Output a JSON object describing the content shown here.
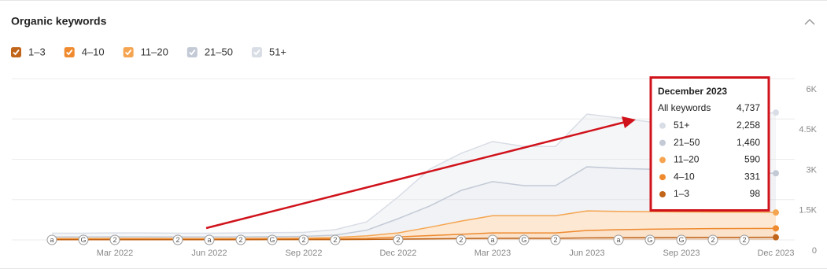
{
  "chart_data": {
    "type": "stacked-area",
    "title": "Organic keywords",
    "categories": [
      null,
      null,
      "Mar 2022",
      null,
      null,
      "Jun 2022",
      null,
      null,
      "Sep 2022",
      null,
      null,
      "Dec 2022",
      null,
      null,
      "Mar 2023",
      null,
      null,
      "Jun 2023",
      null,
      null,
      "Sep 2023",
      null,
      null,
      "Dec 2023"
    ],
    "series": [
      {
        "name": "1–3",
        "color": "#c0651a",
        "values": [
          8,
          8,
          8,
          8,
          8,
          8,
          9,
          10,
          10,
          12,
          18,
          30,
          40,
          50,
          60,
          60,
          60,
          75,
          80,
          85,
          88,
          92,
          95,
          98
        ]
      },
      {
        "name": "4–10",
        "color": "#ef8a2e",
        "values": [
          17,
          17,
          17,
          17,
          17,
          17,
          19,
          20,
          22,
          28,
          42,
          80,
          120,
          160,
          200,
          200,
          200,
          275,
          300,
          315,
          322,
          328,
          330,
          331
        ]
      },
      {
        "name": "11–20",
        "color": "#f5a551",
        "values": [
          25,
          25,
          30,
          30,
          25,
          25,
          27,
          30,
          33,
          50,
          90,
          150,
          310,
          490,
          640,
          640,
          640,
          730,
          680,
          650,
          630,
          610,
          605,
          590
        ]
      },
      {
        "name": "21–50",
        "color": "#c3cad6",
        "values": [
          60,
          60,
          60,
          60,
          60,
          60,
          60,
          60,
          65,
          90,
          210,
          530,
          790,
          1140,
          1270,
          1120,
          1120,
          1640,
          1600,
          1580,
          1520,
          1490,
          1470,
          1460
        ]
      },
      {
        "name": "51+",
        "color": "#d9dde5",
        "values": [
          140,
          140,
          145,
          145,
          140,
          140,
          145,
          150,
          150,
          200,
          310,
          810,
          1370,
          1380,
          1490,
          1460,
          1460,
          1960,
          1880,
          1760,
          1940,
          2080,
          2150,
          2258
        ]
      }
    ],
    "ylim": [
      0,
      6000
    ],
    "yticks": [
      0,
      {
        "value": 1500,
        "label": "1.5K"
      },
      {
        "value": 3000,
        "label": "3K"
      },
      {
        "value": 4500,
        "label": "4.5K"
      },
      {
        "value": 6000,
        "label": "6K"
      }
    ],
    "grid": true,
    "events": [
      {
        "at": 0,
        "label": "a"
      },
      {
        "at": 1,
        "label": "G"
      },
      {
        "at": 2,
        "label": "2"
      },
      {
        "at": 4,
        "label": "2"
      },
      {
        "at": 5,
        "label": "a"
      },
      {
        "at": 6,
        "label": "2"
      },
      {
        "at": 7,
        "label": "G"
      },
      {
        "at": 8,
        "label": "2"
      },
      {
        "at": 9,
        "label": "2"
      },
      {
        "at": 11,
        "label": "2"
      },
      {
        "at": 13,
        "label": "2"
      },
      {
        "at": 14,
        "label": "a"
      },
      {
        "at": 15,
        "label": "G"
      },
      {
        "at": 16,
        "label": "2"
      },
      {
        "at": 18,
        "label": "a"
      },
      {
        "at": 19,
        "label": "G"
      },
      {
        "at": 20,
        "label": "G"
      },
      {
        "at": 21,
        "label": "2"
      },
      {
        "at": 22,
        "label": "2"
      }
    ],
    "tooltip": {
      "title": "December 2023",
      "rows": [
        {
          "name": "All keywords",
          "value": "4,737"
        },
        {
          "name": "51+",
          "value": "2,258"
        },
        {
          "name": "21–50",
          "value": "1,460"
        },
        {
          "name": "11–20",
          "value": "590"
        },
        {
          "name": "4–10",
          "value": "331"
        },
        {
          "name": "1–3",
          "value": "98"
        }
      ]
    }
  }
}
